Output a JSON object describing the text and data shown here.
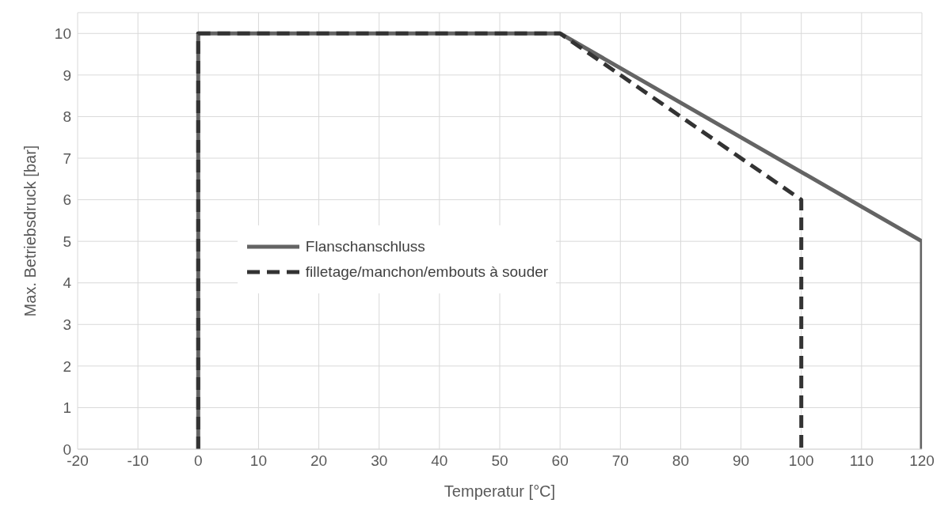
{
  "chart_data": {
    "type": "line",
    "xlabel": "Temperatur  [°C]",
    "ylabel": "Max. Betriebsdruck  [bar]",
    "xlim": [
      -20,
      120
    ],
    "xticks": [
      -20,
      -10,
      0,
      10,
      20,
      30,
      40,
      50,
      60,
      70,
      80,
      90,
      100,
      110,
      120
    ],
    "ylim": [
      0,
      10.5
    ],
    "yticks": [
      0,
      1,
      2,
      3,
      4,
      5,
      6,
      7,
      8,
      9,
      10
    ],
    "grid": true,
    "legend": "center",
    "marker": "none",
    "series": [
      {
        "name": "Flanschanschluss",
        "color": "#646464",
        "line_style": "solid",
        "x": [
          0,
          0,
          60,
          120,
          120
        ],
        "values": [
          0,
          10,
          10,
          5,
          0
        ]
      },
      {
        "name": "filletage/manchon/embouts à souder",
        "color": "#333333",
        "line_style": "dashed",
        "x": [
          0,
          0,
          60,
          100,
          100
        ],
        "values": [
          0,
          10,
          10,
          6,
          0
        ]
      }
    ]
  }
}
